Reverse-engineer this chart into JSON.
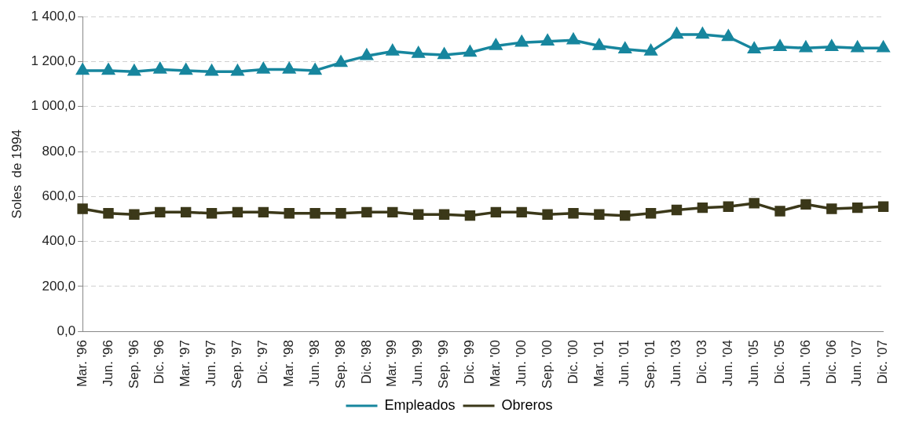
{
  "chart_data": {
    "type": "line",
    "ylabel": "Soles  de 1994",
    "categories": [
      "Mar. '96",
      "Jun. '96",
      "Sep. '96",
      "Dic. '96",
      "Mar. '97",
      "Jun. '97",
      "Sep. '97",
      "Dic. '97",
      "Mar. '98",
      "Jun. '98",
      "Sep. '98",
      "Dic. '98",
      "Mar. '99",
      "Jun. '99",
      "Sep. '99",
      "Dic. '99",
      "Mar. '00",
      "Jun. '00",
      "Sep. '00",
      "Dic. '00",
      "Mar. '01",
      "Jun. '01",
      "Sep. '01",
      "Jun. '03",
      "Dic. '03",
      "Jun. '04",
      "Jun. '05",
      "Dic. '05",
      "Jun. '06",
      "Dic. '06",
      "Jun. '07",
      "Dic. '07"
    ],
    "series": [
      {
        "name": "Empleados",
        "color": "#17869e",
        "marker": "triangle",
        "values": [
          1160,
          1160,
          1155,
          1165,
          1160,
          1155,
          1155,
          1165,
          1165,
          1160,
          1195,
          1225,
          1245,
          1235,
          1230,
          1240,
          1270,
          1285,
          1290,
          1295,
          1270,
          1255,
          1245,
          1320,
          1320,
          1310,
          1255,
          1265,
          1260,
          1265,
          1260,
          1260
        ]
      },
      {
        "name": "Obreros",
        "color": "#3b3819",
        "marker": "square",
        "values": [
          545,
          525,
          520,
          530,
          530,
          525,
          530,
          530,
          525,
          525,
          525,
          530,
          530,
          520,
          520,
          515,
          530,
          530,
          520,
          525,
          520,
          515,
          525,
          540,
          550,
          555,
          570,
          535,
          565,
          545,
          550,
          555
        ]
      }
    ],
    "ylim": [
      0,
      1400
    ],
    "yticks": [
      {
        "value": 0,
        "label": "0,0"
      },
      {
        "value": 200,
        "label": "200,0"
      },
      {
        "value": 400,
        "label": "400,0"
      },
      {
        "value": 600,
        "label": "600,0"
      },
      {
        "value": 800,
        "label": "800,0"
      },
      {
        "value": 1000,
        "label": "1 000,0"
      },
      {
        "value": 1200,
        "label": "1 200,0"
      },
      {
        "value": 1400,
        "label": "1 400,0"
      }
    ],
    "grid": "y",
    "legend": "bottom",
    "line_style": "solid"
  }
}
